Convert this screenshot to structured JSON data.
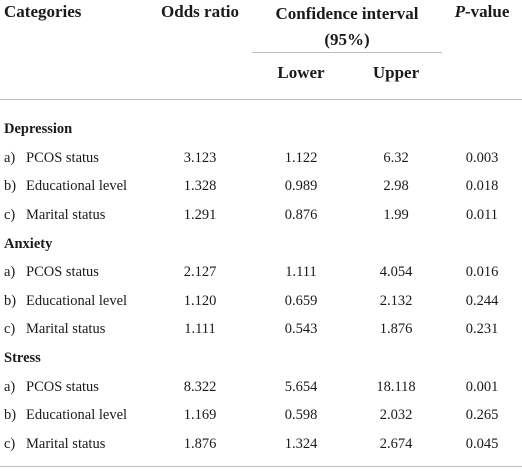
{
  "header": {
    "categories": "Categories",
    "odds_ratio": "Odds ratio",
    "ci_line1": "Confidence interval",
    "ci_line2": "(95%)",
    "lower": "Lower",
    "upper": "Upper",
    "p_italic": "P",
    "p_rest": "-value"
  },
  "groups": [
    {
      "title": "Depression",
      "rows": [
        {
          "marker": "a)",
          "label": "PCOS status",
          "or": "3.123",
          "lower": "1.122",
          "upper": "6.32",
          "p": "0.003"
        },
        {
          "marker": "b)",
          "label": "Educational level",
          "or": "1.328",
          "lower": "0.989",
          "upper": "2.98",
          "p": "0.018"
        },
        {
          "marker": "c)",
          "label": "Marital status",
          "or": "1.291",
          "lower": "0.876",
          "upper": "1.99",
          "p": "0.011"
        }
      ]
    },
    {
      "title": "Anxiety",
      "rows": [
        {
          "marker": "a)",
          "label": "PCOS status",
          "or": "2.127",
          "lower": "1.111",
          "upper": "4.054",
          "p": "0.016"
        },
        {
          "marker": "b)",
          "label": "Educational level",
          "or": "1.120",
          "lower": "0.659",
          "upper": "2.132",
          "p": "0.244"
        },
        {
          "marker": "c)",
          "label": "Marital status",
          "or": "1.111",
          "lower": "0.543",
          "upper": "1.876",
          "p": "0.231"
        }
      ]
    },
    {
      "title": "Stress",
      "rows": [
        {
          "marker": "a)",
          "label": "PCOS status",
          "or": "8.322",
          "lower": "5.654",
          "upper": "18.118",
          "p": "0.001"
        },
        {
          "marker": "b)",
          "label": "Educational level",
          "or": "1.169",
          "lower": "0.598",
          "upper": "2.032",
          "p": "0.265"
        },
        {
          "marker": "c)",
          "label": "Marital status",
          "or": "1.876",
          "lower": "1.324",
          "upper": "2.674",
          "p": "0.045"
        }
      ]
    }
  ]
}
